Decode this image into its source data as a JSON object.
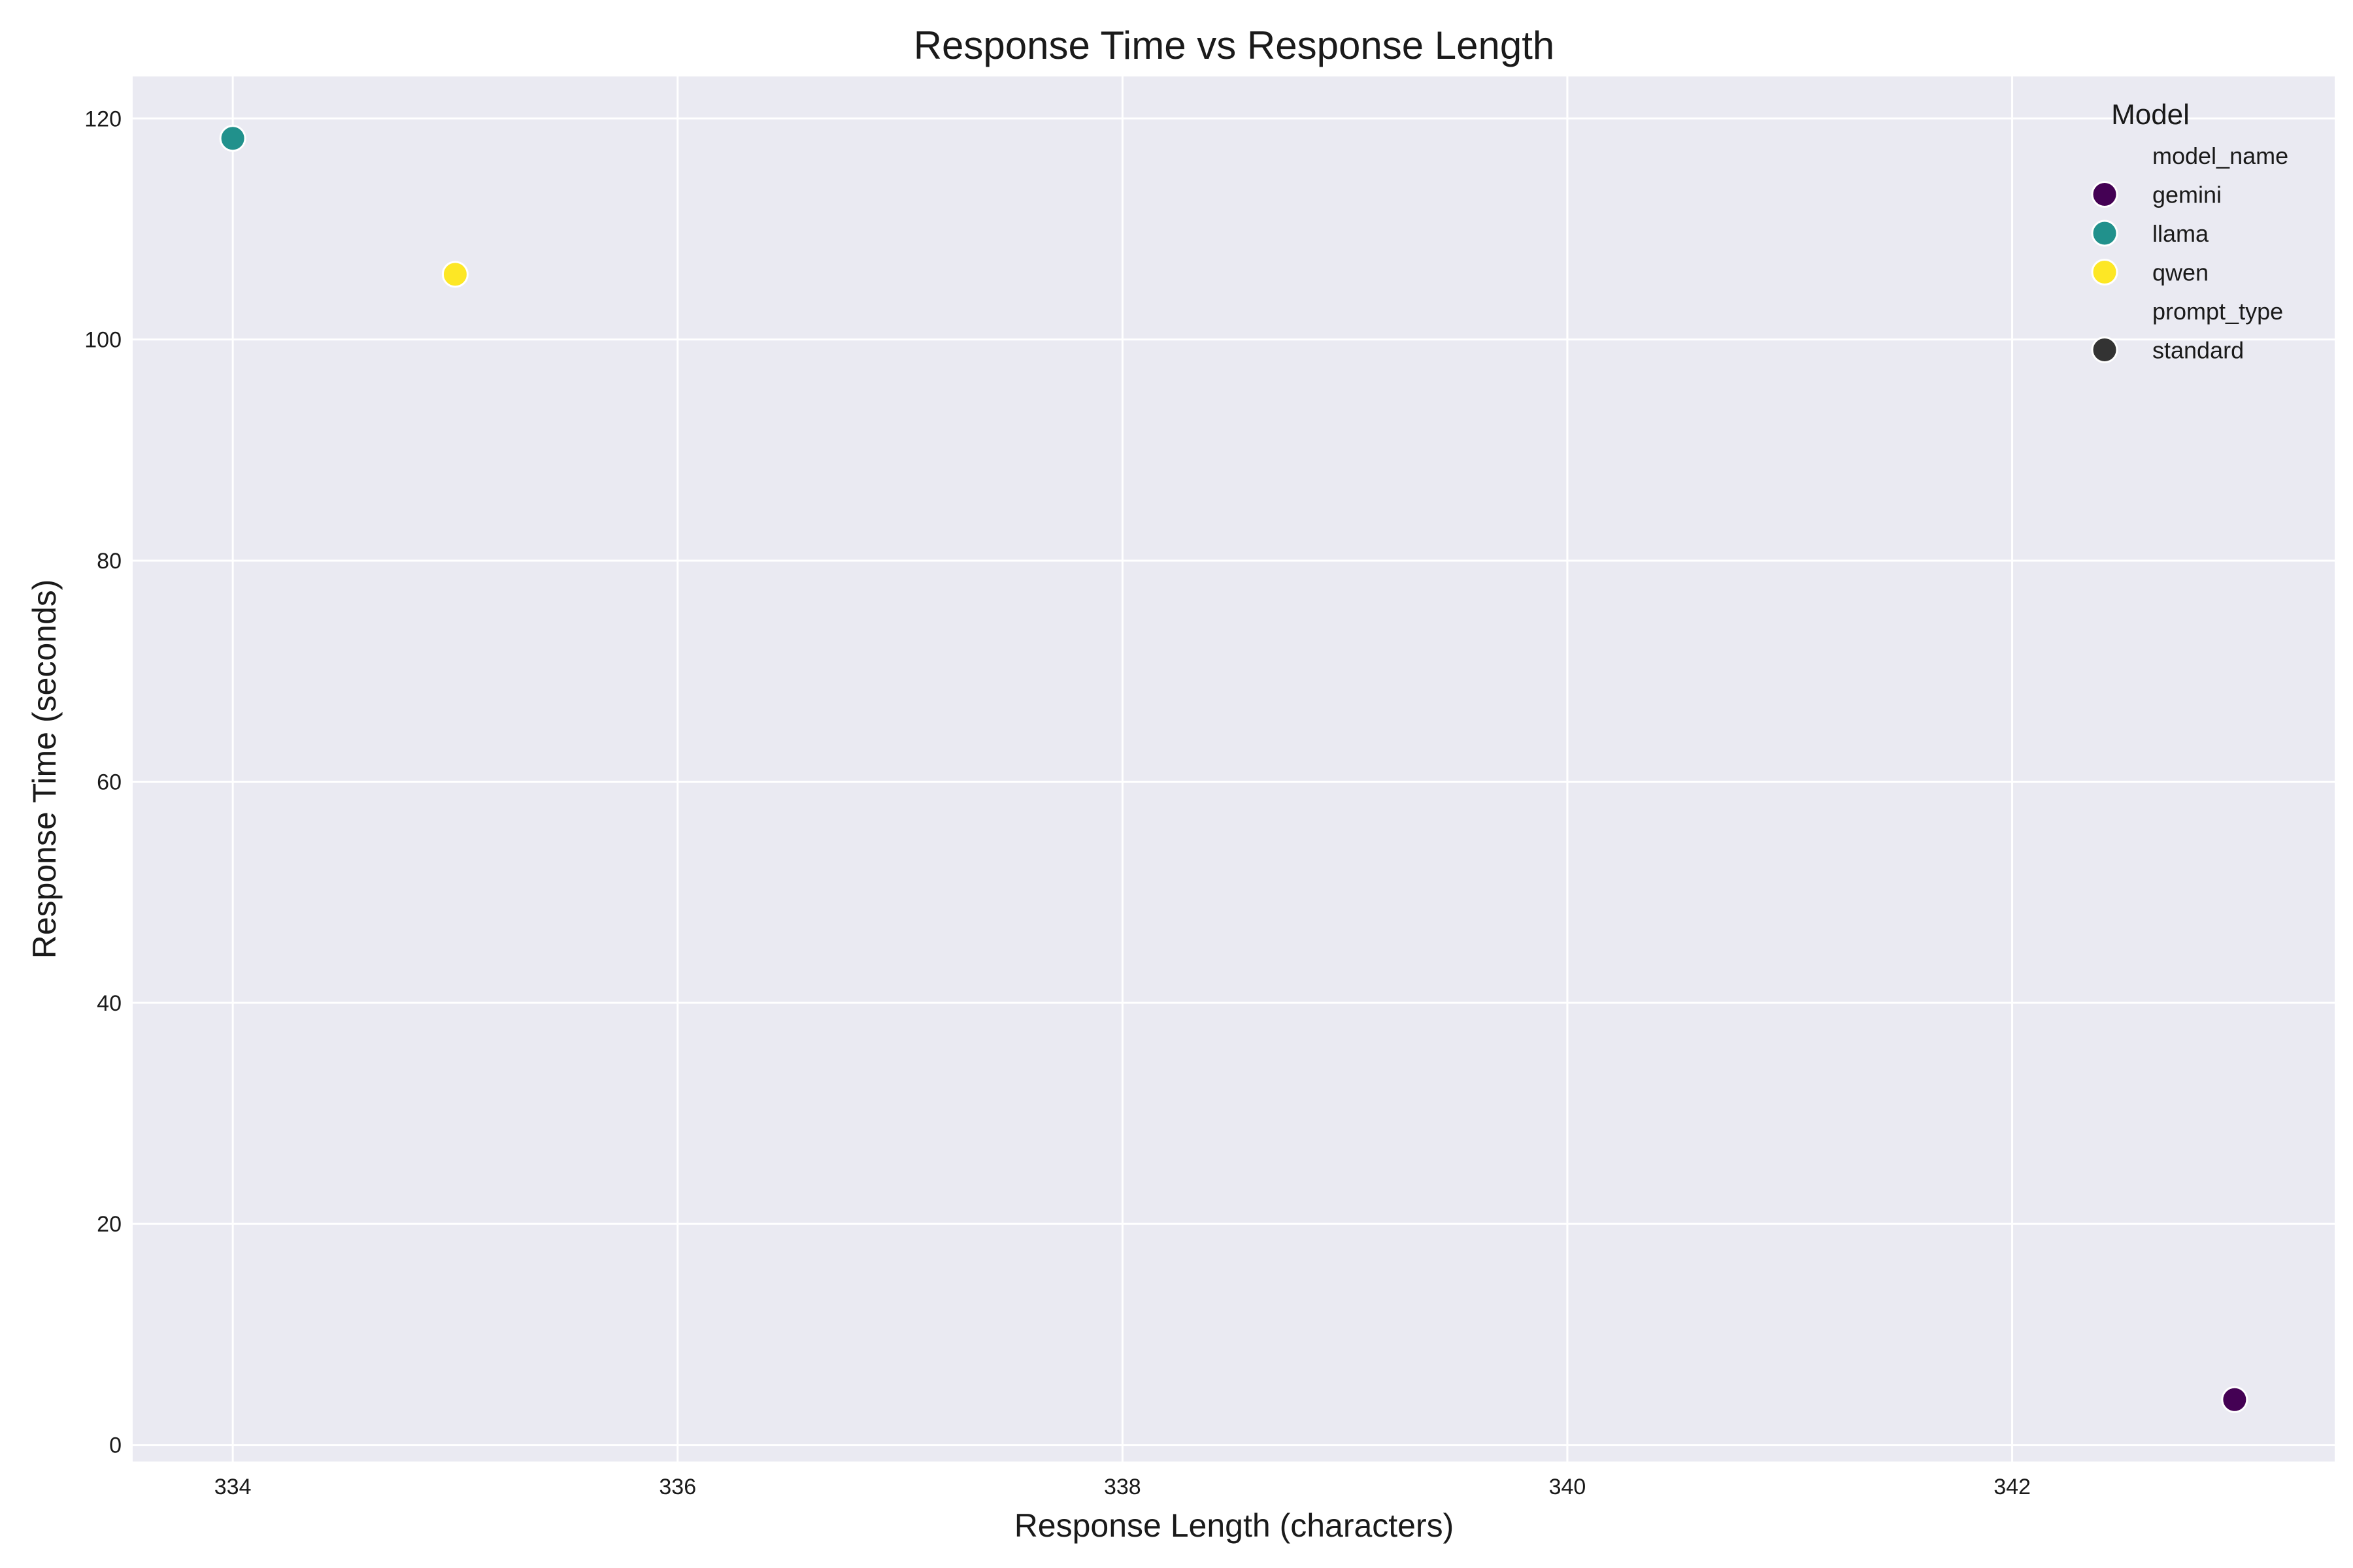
{
  "chart_data": {
    "type": "scatter",
    "title": "Response Time vs Response Length",
    "xlabel": "Response Length (characters)",
    "ylabel": "Response Time (seconds)",
    "xlim": [
      333.55,
      343.45
    ],
    "ylim": [
      -1.5,
      123.8
    ],
    "xticks": [
      334,
      336,
      338,
      340,
      342
    ],
    "yticks": [
      0,
      20,
      40,
      60,
      80,
      100,
      120
    ],
    "grid": true,
    "background_color": "#EAEAF2",
    "grid_color": "#FFFFFF",
    "legend_position": "top-right",
    "series": [
      {
        "name": "gemini",
        "color": "#440154",
        "points": [
          {
            "x": 343,
            "y": 4.1
          }
        ]
      },
      {
        "name": "llama",
        "color": "#21918C",
        "points": [
          {
            "x": 334,
            "y": 118.2
          }
        ]
      },
      {
        "name": "qwen",
        "color": "#FDE725",
        "points": [
          {
            "x": 335,
            "y": 105.9
          }
        ]
      }
    ],
    "legend": {
      "title": "Model",
      "entries": [
        {
          "label": "model_name",
          "marker": false,
          "color": ""
        },
        {
          "label": "gemini",
          "marker": true,
          "color": "#440154"
        },
        {
          "label": "llama",
          "marker": true,
          "color": "#21918C"
        },
        {
          "label": "qwen",
          "marker": true,
          "color": "#FDE725"
        },
        {
          "label": "prompt_type",
          "marker": false,
          "color": ""
        },
        {
          "label": "standard",
          "marker": true,
          "color": "#333333"
        }
      ]
    }
  }
}
